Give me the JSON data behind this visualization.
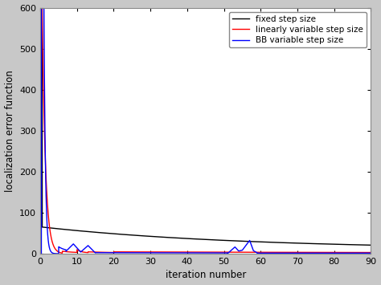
{
  "title": "",
  "xlabel": "iteration number",
  "ylabel": "localization error function",
  "xlim": [
    0,
    90
  ],
  "ylim": [
    0,
    600
  ],
  "yticks": [
    0,
    100,
    200,
    300,
    400,
    500,
    600
  ],
  "xticks": [
    0,
    10,
    20,
    30,
    40,
    50,
    60,
    70,
    80,
    90
  ],
  "legend_entries": [
    "fixed step size",
    "linearly variable step size",
    "BB variable step size"
  ],
  "line_colors": [
    "black",
    "red",
    "blue"
  ],
  "figsize": [
    4.74,
    3.55
  ],
  "dpi": 100
}
